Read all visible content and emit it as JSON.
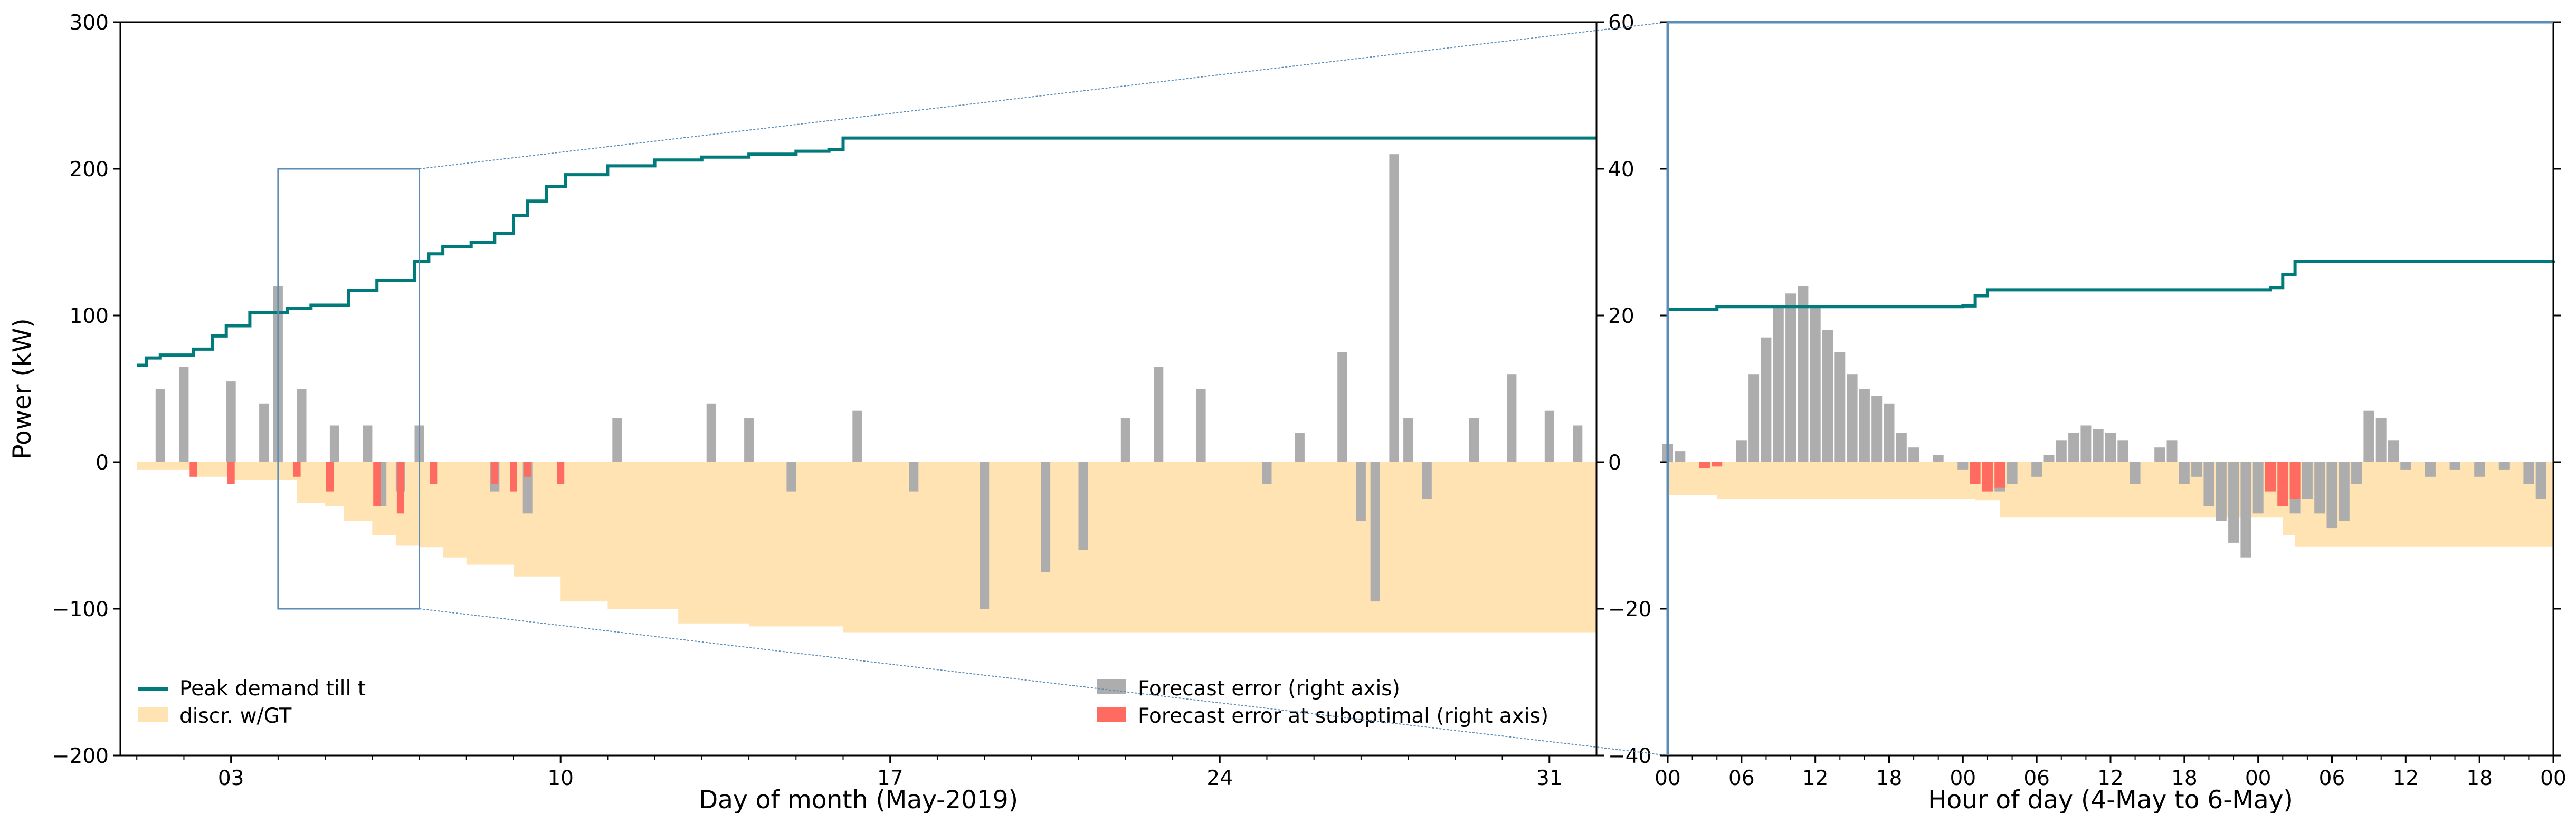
{
  "colors": {
    "peak": "#007a7a",
    "discr": "#ffe3b3",
    "fe": "#adadad",
    "fe_sub": "#ff6b60",
    "zoom": "#5b8db8"
  },
  "chart_data": [
    {
      "type": "area",
      "title": "",
      "xlabel": "Day of month (May-2019)",
      "ylabel": "Power (kW)",
      "x_unit": "day of month (May 2019)",
      "xlim": [
        0.65,
        32.0
      ],
      "ylim": [
        -200,
        300
      ],
      "y_ticks": [
        300,
        200,
        100,
        0,
        -100,
        -200
      ],
      "y_tick_labels": [
        "300",
        "200",
        "100",
        "0",
        "−100",
        "−200"
      ],
      "right_ylim": [
        -40,
        60
      ],
      "right_y_ticks": [
        60,
        40,
        20,
        0,
        -20,
        -40
      ],
      "right_y_tick_labels": [
        "60",
        "40",
        "20",
        "0",
        "−20",
        "−40"
      ],
      "x_ticks": [
        3,
        10,
        17,
        24,
        31
      ],
      "x_tick_labels": [
        "03",
        "10",
        "17",
        "24",
        "31"
      ],
      "legend_left": [
        "Peak demand till t",
        "discr. w/GT"
      ],
      "legend_right": [
        "Forecast error (right axis)",
        "Forecast error at suboptimal (right axis)"
      ],
      "legend_placement": "lower",
      "grid": false,
      "series": [
        {
          "name": "Peak demand till t",
          "kind": "step",
          "axis": "left",
          "x": [
            1.0,
            1.2,
            1.5,
            2.2,
            2.6,
            2.9,
            3.4,
            4.2,
            4.7,
            5.5,
            6.1,
            6.9,
            7.2,
            7.5,
            8.1,
            8.6,
            9.0,
            9.3,
            9.7,
            10.1,
            11.0,
            12.0,
            13.0,
            14.0,
            15.0,
            15.7,
            16.0,
            32.0
          ],
          "y": [
            66,
            71,
            73,
            77,
            86,
            93,
            102,
            105,
            107,
            117,
            124,
            137,
            142,
            147,
            150,
            156,
            168,
            178,
            188,
            196,
            202,
            206,
            208,
            210,
            212,
            213,
            221,
            221
          ]
        },
        {
          "name": "discr. w/GT",
          "kind": "step-area",
          "axis": "left",
          "x": [
            1.0,
            2.2,
            3.0,
            4.4,
            5.0,
            5.4,
            6.0,
            6.5,
            7.0,
            7.5,
            8.0,
            9.0,
            10.0,
            11.0,
            12.5,
            14.0,
            15.5,
            16.0,
            32.0
          ],
          "y": [
            -5,
            -10,
            -12,
            -28,
            -30,
            -40,
            -50,
            -57,
            -58,
            -65,
            -70,
            -78,
            -95,
            -100,
            -110,
            -112,
            -112,
            -116,
            -116
          ]
        },
        {
          "name": "Forecast error (right axis)",
          "kind": "bars",
          "axis": "right",
          "x": [
            1.5,
            2.0,
            3.0,
            3.7,
            4.0,
            4.5,
            5.2,
            5.9,
            6.2,
            6.6,
            7.0,
            8.6,
            9.3,
            11.2,
            13.2,
            14.0,
            14.9,
            16.3,
            17.5,
            19.0,
            20.3,
            21.1,
            22.0,
            22.7,
            23.6,
            25.0,
            25.7,
            26.6,
            27.0,
            27.3,
            27.7,
            28.0,
            28.4,
            29.4,
            30.2,
            31.0,
            31.6
          ],
          "y": [
            10,
            13,
            11,
            8,
            24,
            10,
            5,
            5,
            -6,
            -4,
            5,
            -4,
            -7,
            6,
            8,
            6,
            -4,
            7,
            -4,
            -20,
            -15,
            -12,
            6,
            13,
            10,
            -3,
            4,
            15,
            -8,
            -19,
            42,
            6,
            -5,
            6,
            12,
            7,
            5
          ]
        },
        {
          "name": "Forecast error at suboptimal (right axis)",
          "kind": "bars",
          "axis": "right",
          "x": [
            2.2,
            3.0,
            4.4,
            5.1,
            6.1,
            6.6,
            7.3,
            8.6,
            9.0,
            9.3,
            10.0
          ],
          "y": [
            -2,
            -3,
            -2,
            -4,
            -6,
            -7,
            -3,
            -3,
            -4,
            -2,
            -3
          ]
        }
      ],
      "zoom_region": {
        "x": [
          4.0,
          7.0
        ],
        "y": [
          -100,
          200
        ]
      }
    },
    {
      "type": "area",
      "title": "",
      "xlabel": "Hour of day (4-May to 6-May)",
      "x_unit": "hours since 00:00 on 4-May-2019",
      "xlim": [
        0,
        72
      ],
      "ylim": [
        -40,
        60
      ],
      "y_ticks": [
        60,
        40,
        20,
        0,
        -20,
        -40
      ],
      "y_tick_labels": [
        "60",
        "40",
        "20",
        "0",
        "−20",
        "−40"
      ],
      "x_ticks": [
        0,
        6,
        12,
        18,
        24,
        30,
        36,
        42,
        48,
        54,
        60,
        66,
        72
      ],
      "x_tick_labels": [
        "00",
        "06",
        "12",
        "18",
        "00",
        "06",
        "12",
        "18",
        "00",
        "06",
        "12",
        "18",
        "00"
      ],
      "grid": false,
      "series": [
        {
          "name": "Peak demand till t",
          "kind": "step",
          "x": [
            0,
            4,
            24,
            25,
            26,
            49,
            50,
            51,
            72
          ],
          "y": [
            20.8,
            21.2,
            21.3,
            22.7,
            23.5,
            23.8,
            25.6,
            27.4,
            27.5
          ]
        },
        {
          "name": "discr. w/GT",
          "kind": "step-area",
          "x": [
            0,
            4,
            25,
            27,
            48,
            50,
            51,
            72
          ],
          "y": [
            -4.5,
            -5,
            -5.2,
            -7.5,
            -7.5,
            -10,
            -11.5,
            -11.5
          ]
        },
        {
          "name": "Forecast error (right axis)",
          "kind": "bars",
          "x": [
            0,
            1,
            3,
            6,
            7,
            8,
            9,
            10,
            11,
            12,
            13,
            14,
            15,
            16,
            17,
            18,
            19,
            20,
            22,
            24,
            26,
            27,
            28,
            30,
            31,
            32,
            33,
            34,
            35,
            36,
            37,
            38,
            40,
            41,
            42,
            43,
            44,
            45,
            46,
            47,
            48,
            49,
            50,
            51,
            52,
            53,
            54,
            55,
            56,
            57,
            58,
            59,
            60,
            62,
            64,
            66,
            68,
            70,
            71
          ],
          "y": [
            2.5,
            1.5,
            -0.5,
            3,
            12,
            17,
            21,
            23,
            24,
            21,
            18,
            15,
            12,
            10,
            9,
            8,
            4,
            2,
            1,
            -1,
            -3,
            -4,
            -3,
            -2,
            1,
            3,
            4,
            5,
            4.5,
            4,
            3,
            -3,
            2,
            3,
            -3,
            -2,
            -6,
            -8,
            -11,
            -13,
            -7,
            -3,
            -6,
            -7,
            -5,
            -7,
            -9,
            -8,
            -3,
            7,
            6,
            3,
            -1,
            -2,
            -1,
            -2,
            -1,
            -3,
            -5
          ]
        },
        {
          "name": "Forecast error at suboptimal (right axis)",
          "kind": "bars",
          "x": [
            3,
            4,
            25,
            26,
            27,
            49,
            50,
            51
          ],
          "y": [
            -0.8,
            -0.6,
            -3,
            -4,
            -3.5,
            -4,
            -6,
            -5
          ]
        }
      ]
    }
  ]
}
